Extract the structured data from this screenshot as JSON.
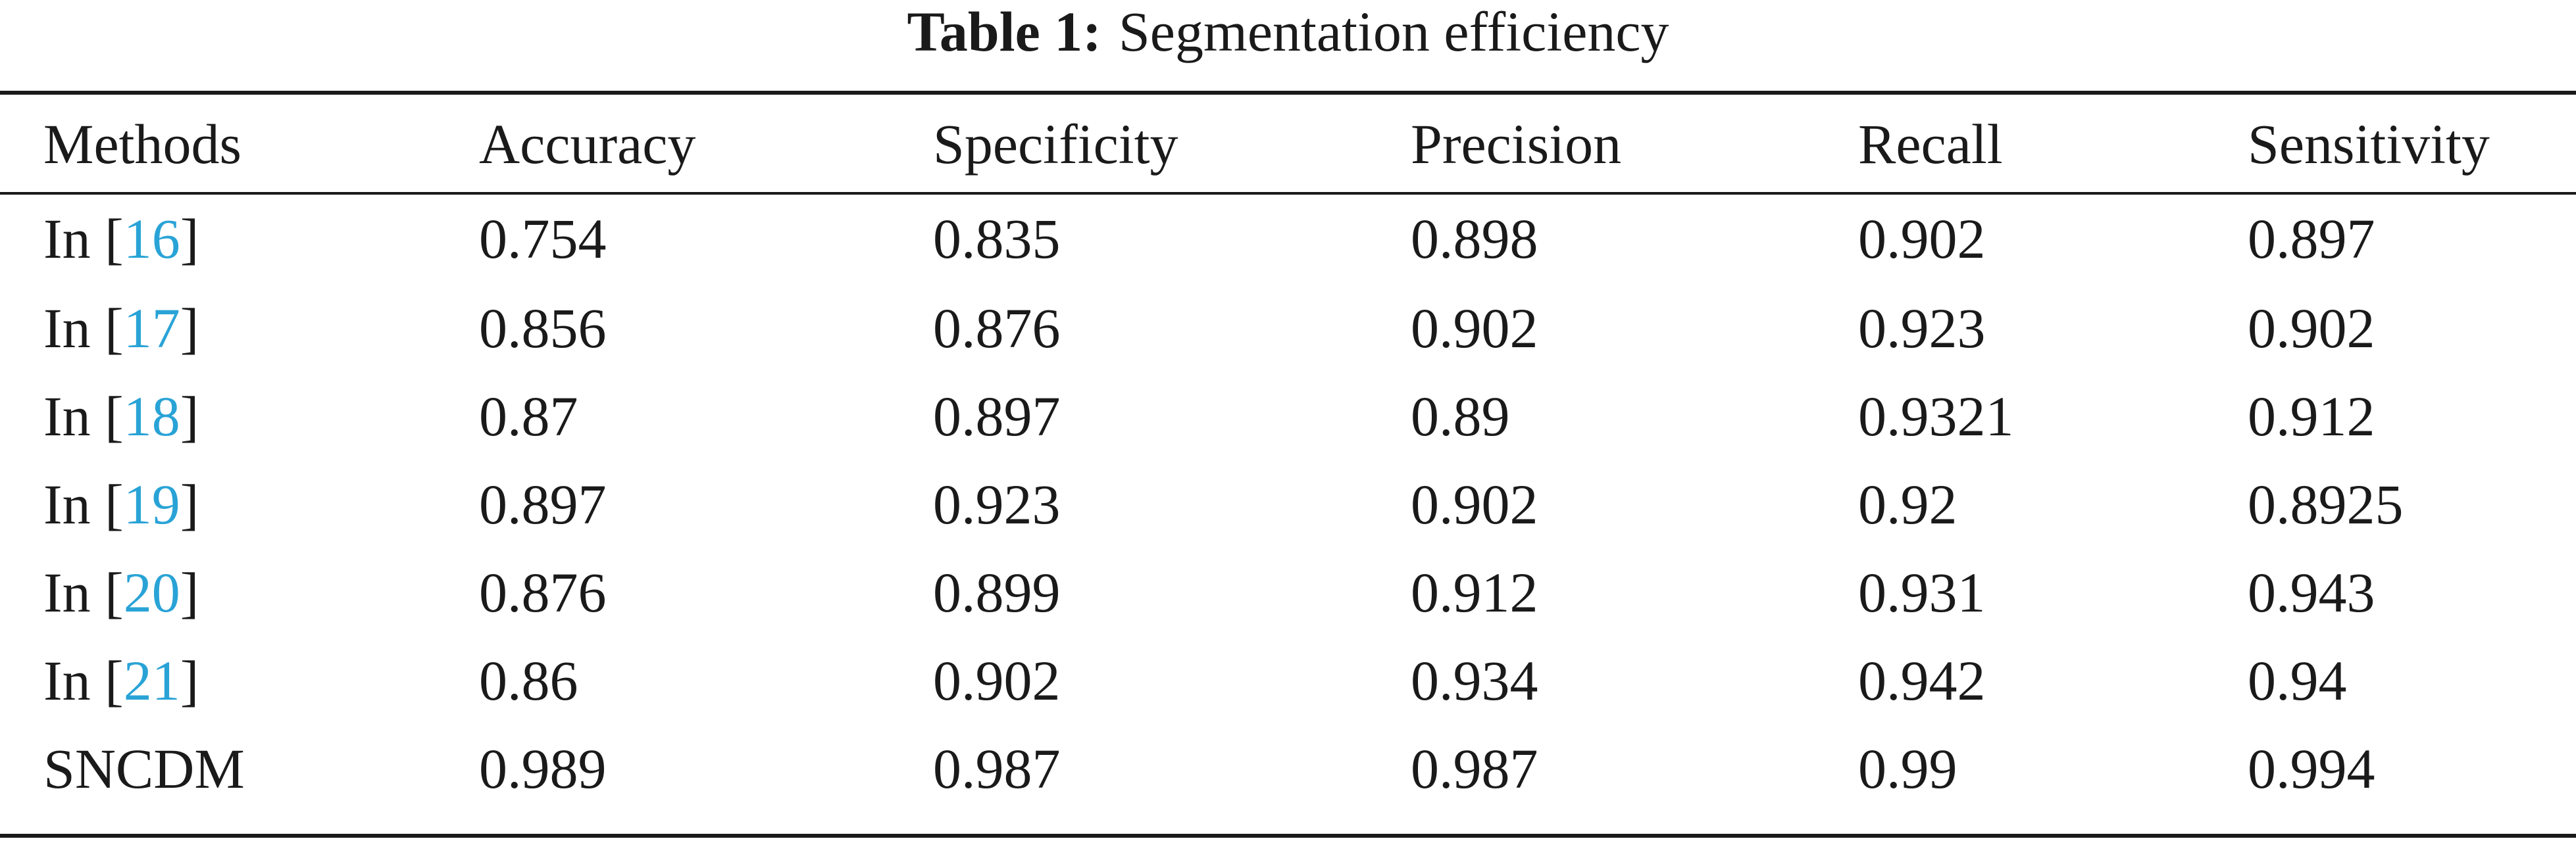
{
  "caption": {
    "label": "Table 1:",
    "title": "Segmentation efficiency"
  },
  "columns": [
    "Methods",
    "Accuracy",
    "Specificity",
    "Precision",
    "Recall",
    "Sensitivity"
  ],
  "rows": [
    {
      "prefix": "In [",
      "ref": "16",
      "suffix": "]",
      "name": "",
      "values": [
        "0.754",
        "0.835",
        "0.898",
        "0.902",
        "0.897"
      ]
    },
    {
      "prefix": "In [",
      "ref": "17",
      "suffix": "]",
      "name": "",
      "values": [
        "0.856",
        "0.876",
        "0.902",
        "0.923",
        "0.902"
      ]
    },
    {
      "prefix": "In [",
      "ref": "18",
      "suffix": "]",
      "name": "",
      "values": [
        "0.87",
        "0.897",
        "0.89",
        "0.9321",
        "0.912"
      ]
    },
    {
      "prefix": "In [",
      "ref": "19",
      "suffix": "]",
      "name": "",
      "values": [
        "0.897",
        "0.923",
        "0.902",
        "0.92",
        "0.8925"
      ]
    },
    {
      "prefix": "In [",
      "ref": "20",
      "suffix": "]",
      "name": "",
      "values": [
        "0.876",
        "0.899",
        "0.912",
        "0.931",
        "0.943"
      ]
    },
    {
      "prefix": "In [",
      "ref": "21",
      "suffix": "]",
      "name": "",
      "values": [
        "0.86",
        "0.902",
        "0.934",
        "0.942",
        "0.94"
      ]
    },
    {
      "prefix": "",
      "ref": "",
      "suffix": "",
      "name": "SNCDM",
      "values": [
        "0.989",
        "0.987",
        "0.987",
        "0.99",
        "0.994"
      ]
    }
  ],
  "colors": {
    "text": "#1a1a1a",
    "reference_link": "#29a3d6"
  }
}
